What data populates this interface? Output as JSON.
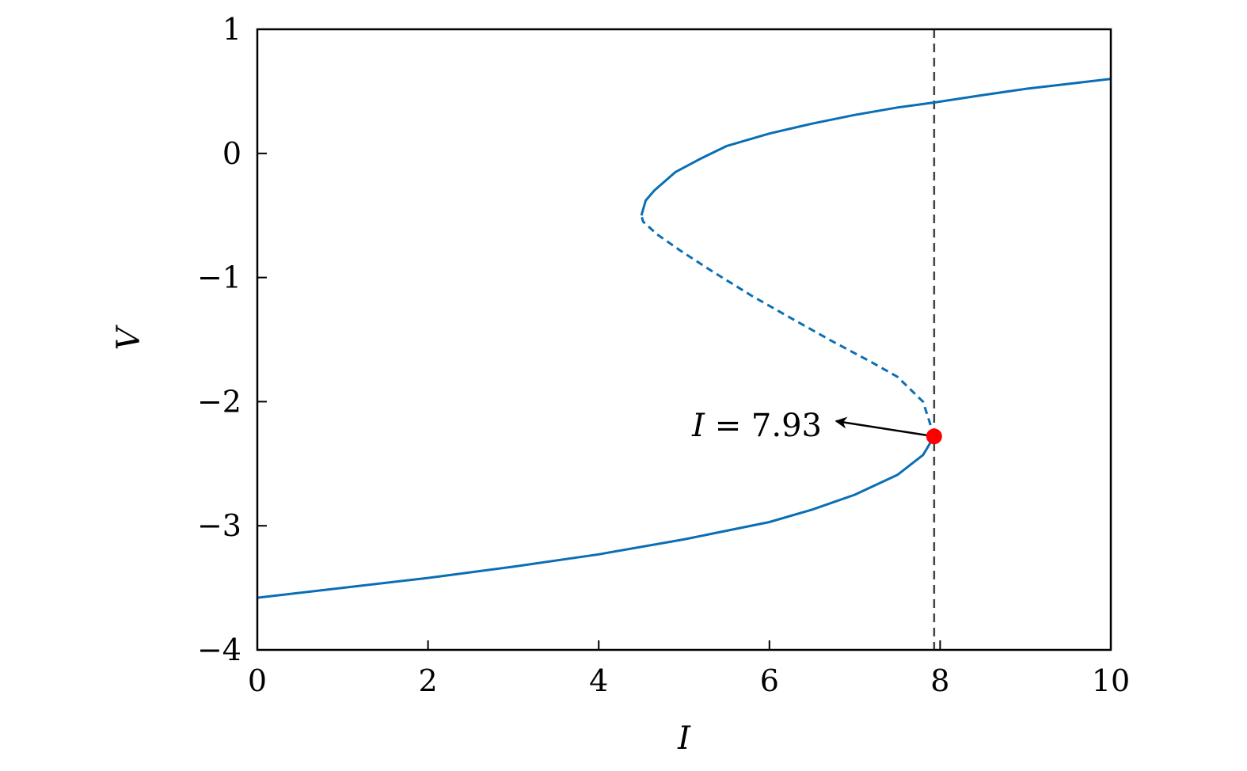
{
  "chart_data": {
    "type": "line",
    "title": "",
    "xlabel": "I",
    "ylabel": "V",
    "xlim": [
      0,
      10
    ],
    "ylim": [
      -4,
      1
    ],
    "xticks": [
      "0",
      "2",
      "4",
      "6",
      "8",
      "10"
    ],
    "yticks": [
      "1",
      "0",
      "−1",
      "−2",
      "−3",
      "−4"
    ],
    "grid": false,
    "series": [
      {
        "style": "solid",
        "color": "#0a6eb4",
        "points": [
          [
            0,
            -3.58
          ],
          [
            1,
            -3.5
          ],
          [
            2,
            -3.42
          ],
          [
            3,
            -3.33
          ],
          [
            4,
            -3.23
          ],
          [
            5,
            -3.11
          ],
          [
            6,
            -2.97
          ],
          [
            6.5,
            -2.87
          ],
          [
            7,
            -2.75
          ],
          [
            7.5,
            -2.59
          ],
          [
            7.8,
            -2.43
          ],
          [
            7.93,
            -2.28
          ]
        ]
      },
      {
        "style": "dashed",
        "color": "#0a6eb4",
        "points": [
          [
            7.93,
            -2.28
          ],
          [
            7.8,
            -2.0
          ],
          [
            7.5,
            -1.8
          ],
          [
            7.19,
            -1.68
          ],
          [
            6.7,
            -1.5
          ],
          [
            6.26,
            -1.33
          ],
          [
            5.8,
            -1.15
          ],
          [
            5.33,
            -0.95
          ],
          [
            4.95,
            -0.78
          ],
          [
            4.68,
            -0.65
          ],
          [
            4.52,
            -0.55
          ],
          [
            4.5,
            -0.5
          ]
        ]
      },
      {
        "style": "solid",
        "color": "#0a6eb4",
        "points": [
          [
            4.5,
            -0.5
          ],
          [
            4.55,
            -0.38
          ],
          [
            4.65,
            -0.3
          ],
          [
            4.9,
            -0.15
          ],
          [
            5.2,
            -0.04
          ],
          [
            5.5,
            0.06
          ],
          [
            6,
            0.16
          ],
          [
            6.5,
            0.24
          ],
          [
            7,
            0.31
          ],
          [
            7.5,
            0.37
          ],
          [
            7.93,
            0.41
          ],
          [
            8.5,
            0.47
          ],
          [
            9,
            0.52
          ],
          [
            9.5,
            0.56
          ],
          [
            10,
            0.6
          ]
        ]
      }
    ],
    "vline": {
      "x": 7.93,
      "style": "dashed",
      "color": "#444444"
    },
    "marker": {
      "x": 7.93,
      "y": -2.28,
      "color": "#ff0000"
    },
    "annotation": {
      "text": "I = 7.93",
      "target": [
        7.93,
        -2.28
      ]
    }
  }
}
